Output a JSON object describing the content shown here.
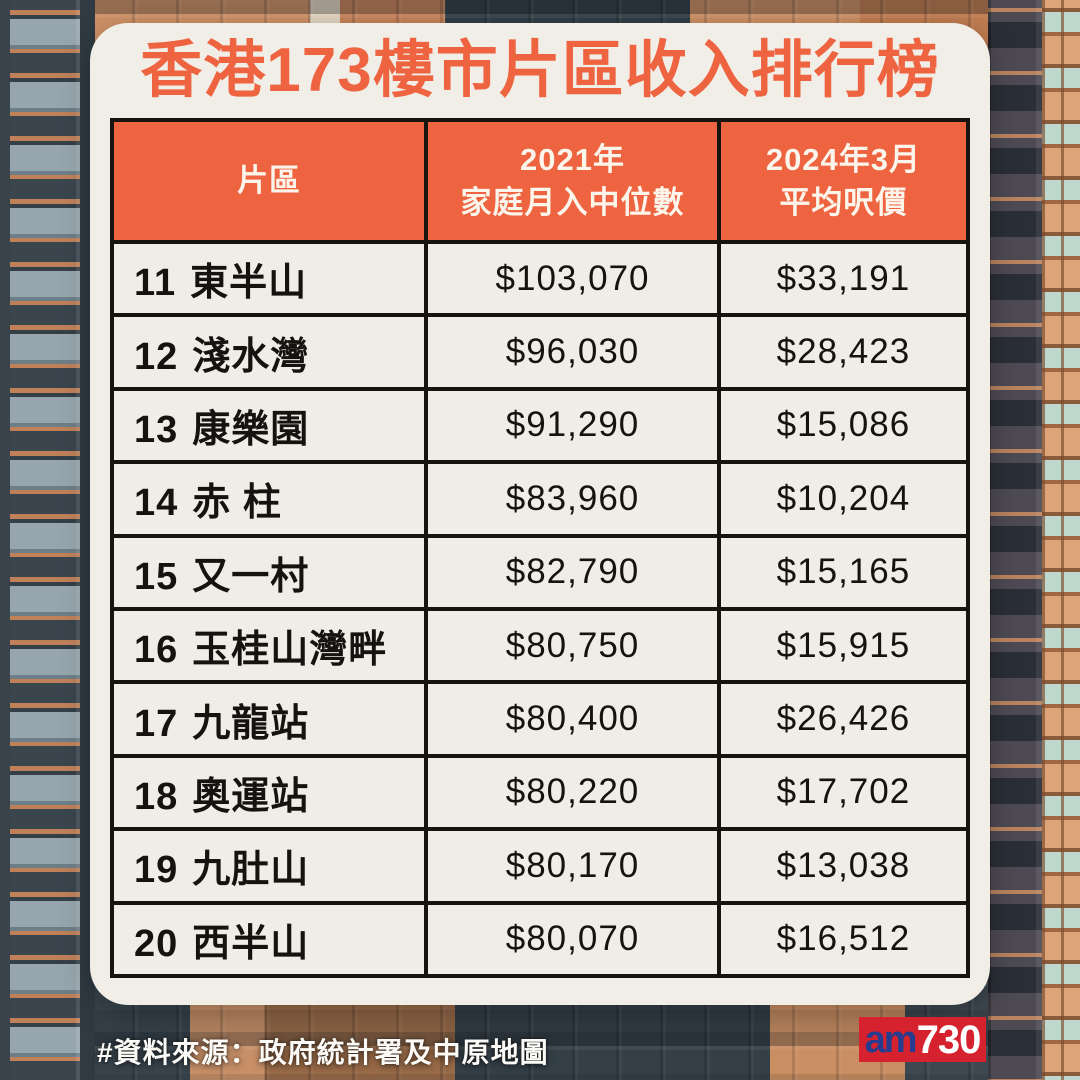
{
  "title": "香港173樓市片區收入排行榜",
  "source_note": "#資料來源：政府統計署及中原地圖",
  "logo": {
    "am": "am",
    "number": "730"
  },
  "colors": {
    "accent_orange": "#EE6440",
    "card_background": "#F1EEE8",
    "table_border": "#17130F",
    "header_text": "#FCF5EB",
    "logo_red": "#D6222E",
    "logo_blue": "#263C8F"
  },
  "chart_data": {
    "type": "table",
    "title": "香港173樓市片區收入排行榜",
    "columns": [
      {
        "key": "district",
        "label": "片區"
      },
      {
        "key": "income",
        "label": "2021年\n家庭月入中位數"
      },
      {
        "key": "price",
        "label": "2024年3月\n平均呎價"
      }
    ],
    "rows": [
      {
        "rank": "11",
        "district": "東半山",
        "income": "$103,070",
        "price": "$33,191"
      },
      {
        "rank": "12",
        "district": "淺水灣",
        "income": "$96,030",
        "price": "$28,423"
      },
      {
        "rank": "13",
        "district": "康樂園",
        "income": "$91,290",
        "price": "$15,086"
      },
      {
        "rank": "14",
        "district": "赤 柱",
        "income": "$83,960",
        "price": "$10,204"
      },
      {
        "rank": "15",
        "district": "又一村",
        "income": "$82,790",
        "price": "$15,165"
      },
      {
        "rank": "16",
        "district": "玉桂山灣畔",
        "income": "$80,750",
        "price": "$15,915"
      },
      {
        "rank": "17",
        "district": "九龍站",
        "income": "$80,400",
        "price": "$26,426"
      },
      {
        "rank": "18",
        "district": "奧運站",
        "income": "$80,220",
        "price": "$17,702"
      },
      {
        "rank": "19",
        "district": "九肚山",
        "income": "$80,170",
        "price": "$13,038"
      },
      {
        "rank": "20",
        "district": "西半山",
        "income": "$80,070",
        "price": "$16,512"
      }
    ]
  }
}
